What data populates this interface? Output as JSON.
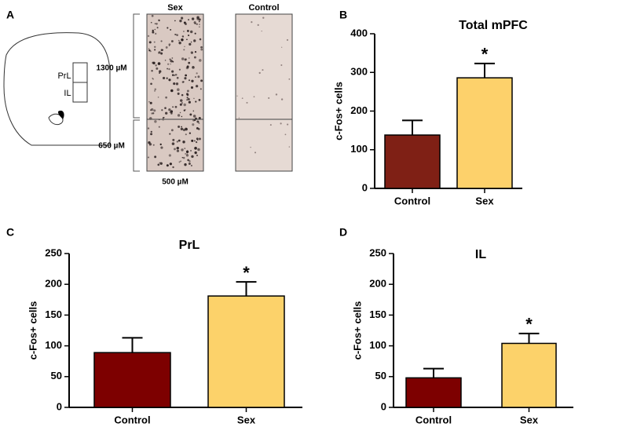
{
  "figure_a": {
    "panel": "A",
    "columns": [
      "Sex",
      "Control"
    ],
    "regions": [
      "PrL",
      "IL"
    ],
    "depths": [
      "1300 µM",
      "650 µM"
    ],
    "width": "500 µM"
  },
  "chart_data": [
    {
      "type": "bar",
      "panel": "B",
      "title": "Total mPFC",
      "y_label": "c-Fos+ cells",
      "categories": [
        "Control",
        "Sex"
      ],
      "values": [
        138,
        286
      ],
      "errors": [
        38,
        37
      ],
      "annotations": [
        null,
        "*"
      ],
      "colors": [
        "#7f2015",
        "#fdd16b"
      ],
      "ylim": [
        0,
        400
      ],
      "yticks": [
        0,
        100,
        200,
        300,
        400
      ]
    },
    {
      "type": "bar",
      "panel": "C",
      "title": "PrL",
      "y_label": "c-Fos+ cells",
      "categories": [
        "Control",
        "Sex"
      ],
      "values": [
        89,
        181
      ],
      "errors": [
        24,
        23
      ],
      "annotations": [
        null,
        "*"
      ],
      "colors": [
        "#7d0000",
        "#fcd26a"
      ],
      "ylim": [
        0,
        250
      ],
      "yticks": [
        0,
        50,
        100,
        150,
        200,
        250
      ]
    },
    {
      "type": "bar",
      "panel": "D",
      "title": "IL",
      "y_label": "c-Fos+ cells",
      "categories": [
        "Control",
        "Sex"
      ],
      "values": [
        48,
        104
      ],
      "errors": [
        15,
        16
      ],
      "annotations": [
        null,
        "*"
      ],
      "colors": [
        "#7d0000",
        "#fcd26a"
      ],
      "ylim": [
        0,
        250
      ],
      "yticks": [
        0,
        50,
        100,
        150,
        200,
        250
      ]
    }
  ]
}
